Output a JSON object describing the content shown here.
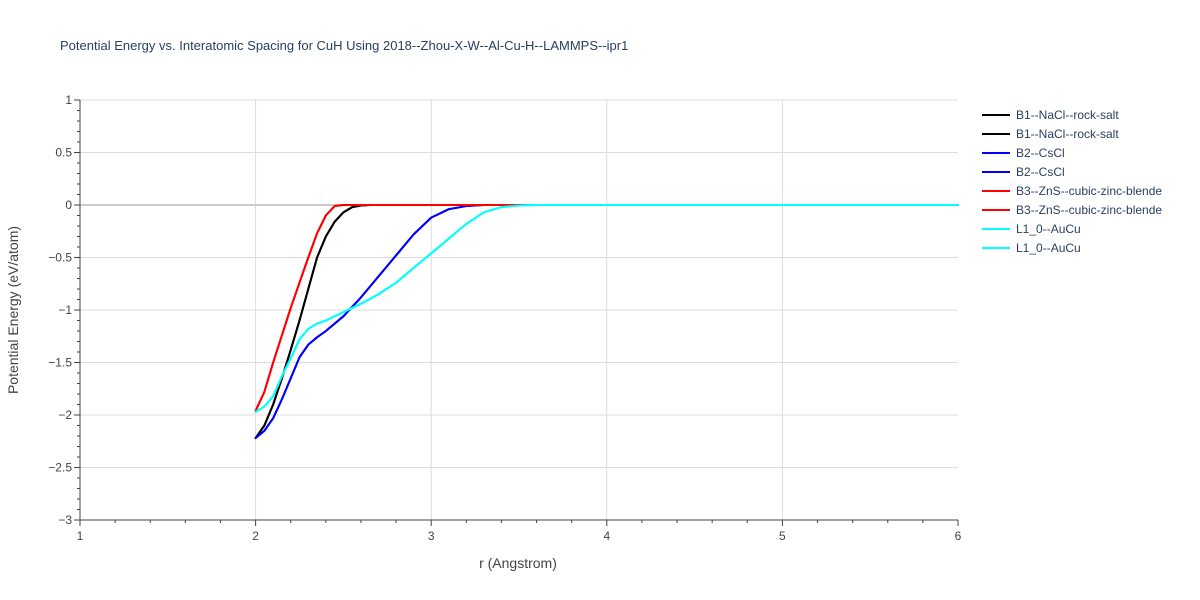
{
  "chart_data": {
    "type": "line",
    "title": "Potential Energy vs. Interatomic Spacing for CuH Using 2018--Zhou-X-W--Al-Cu-H--LAMMPS--ipr1",
    "xlabel": "r (Angstrom)",
    "ylabel": "Potential Energy (eV/atom)",
    "xlim": [
      1,
      6
    ],
    "ylim": [
      -3,
      1
    ],
    "x_ticks": [
      1,
      2,
      3,
      4,
      5,
      6
    ],
    "y_ticks": [
      1,
      0.5,
      0,
      -0.5,
      -1,
      -1.5,
      -2,
      -2.5,
      -3
    ],
    "x_tick_labels": [
      "1",
      "2",
      "3",
      "4",
      "5",
      "6"
    ],
    "y_tick_labels": [
      "1",
      "0.5",
      "0",
      "−0.5",
      "−1",
      "−1.5",
      "−2",
      "−2.5",
      "−3"
    ],
    "grid": true,
    "legend_position": "right",
    "series": [
      {
        "name": "B1--NaCl--rock-salt",
        "color": "#000000",
        "x": [
          2.0,
          2.05,
          2.1,
          2.15,
          2.2,
          2.25,
          2.3,
          2.35,
          2.4,
          2.45,
          2.5,
          2.55,
          2.6,
          2.65,
          2.7,
          3.0,
          6.0
        ],
        "y": [
          -2.22,
          -2.1,
          -1.9,
          -1.65,
          -1.38,
          -1.1,
          -0.8,
          -0.5,
          -0.3,
          -0.16,
          -0.07,
          -0.02,
          -0.005,
          0,
          0,
          0,
          0
        ]
      },
      {
        "name": "B1--NaCl--rock-salt",
        "color": "#000000",
        "x": [
          2.0,
          2.05,
          2.1,
          2.15,
          2.2,
          2.25,
          2.3,
          2.35,
          2.4,
          2.45,
          2.5,
          2.55,
          2.6,
          2.65,
          2.7,
          3.0,
          6.0
        ],
        "y": [
          -2.22,
          -2.1,
          -1.9,
          -1.65,
          -1.38,
          -1.1,
          -0.8,
          -0.5,
          -0.3,
          -0.16,
          -0.07,
          -0.02,
          -0.005,
          0,
          0,
          0,
          0
        ]
      },
      {
        "name": "B2--CsCl",
        "color": "#0000ff",
        "x": [
          2.0,
          2.05,
          2.1,
          2.15,
          2.2,
          2.25,
          2.3,
          2.35,
          2.4,
          2.5,
          2.6,
          2.7,
          2.8,
          2.9,
          3.0,
          3.1,
          3.2,
          3.3,
          3.5,
          6.0
        ],
        "y": [
          -2.22,
          -2.15,
          -2.03,
          -1.85,
          -1.65,
          -1.45,
          -1.33,
          -1.26,
          -1.2,
          -1.06,
          -0.88,
          -0.68,
          -0.48,
          -0.28,
          -0.12,
          -0.04,
          -0.01,
          0,
          0,
          0
        ]
      },
      {
        "name": "B2--CsCl",
        "color": "#0000ff",
        "x": [
          2.0,
          2.05,
          2.1,
          2.15,
          2.2,
          2.25,
          2.3,
          2.35,
          2.4,
          2.5,
          2.6,
          2.7,
          2.8,
          2.9,
          3.0,
          3.1,
          3.2,
          3.3,
          3.5,
          6.0
        ],
        "y": [
          -2.22,
          -2.15,
          -2.03,
          -1.85,
          -1.65,
          -1.45,
          -1.33,
          -1.26,
          -1.2,
          -1.06,
          -0.88,
          -0.68,
          -0.48,
          -0.28,
          -0.12,
          -0.04,
          -0.01,
          0,
          0,
          0
        ]
      },
      {
        "name": "B3--ZnS--cubic-zinc-blende",
        "color": "#ff0000",
        "x": [
          2.0,
          2.05,
          2.1,
          2.15,
          2.2,
          2.25,
          2.3,
          2.35,
          2.4,
          2.45,
          2.5,
          2.6,
          3.0,
          6.0
        ],
        "y": [
          -1.96,
          -1.78,
          -1.5,
          -1.24,
          -0.98,
          -0.74,
          -0.5,
          -0.27,
          -0.1,
          -0.01,
          0,
          0,
          0,
          0
        ]
      },
      {
        "name": "B3--ZnS--cubic-zinc-blende",
        "color": "#ff0000",
        "x": [
          2.0,
          2.05,
          2.1,
          2.15,
          2.2,
          2.25,
          2.3,
          2.35,
          2.4,
          2.45,
          2.5,
          2.6,
          3.0,
          6.0
        ],
        "y": [
          -1.96,
          -1.78,
          -1.5,
          -1.24,
          -0.98,
          -0.74,
          -0.5,
          -0.27,
          -0.1,
          -0.01,
          0,
          0,
          0,
          0
        ]
      },
      {
        "name": "L1_0--AuCu",
        "color": "#00ffff",
        "x": [
          2.0,
          2.05,
          2.1,
          2.15,
          2.2,
          2.25,
          2.3,
          2.35,
          2.4,
          2.5,
          2.6,
          2.7,
          2.8,
          2.9,
          3.0,
          3.1,
          3.2,
          3.3,
          3.4,
          3.5,
          3.6,
          4.0,
          6.0
        ],
        "y": [
          -1.97,
          -1.92,
          -1.82,
          -1.63,
          -1.46,
          -1.28,
          -1.18,
          -1.13,
          -1.1,
          -1.02,
          -0.94,
          -0.85,
          -0.74,
          -0.6,
          -0.46,
          -0.32,
          -0.18,
          -0.07,
          -0.02,
          -0.005,
          0,
          0,
          0
        ]
      },
      {
        "name": "L1_0--AuCu",
        "color": "#00ffff",
        "x": [
          2.0,
          2.05,
          2.1,
          2.15,
          2.2,
          2.25,
          2.3,
          2.35,
          2.4,
          2.5,
          2.6,
          2.7,
          2.8,
          2.9,
          3.0,
          3.1,
          3.2,
          3.3,
          3.4,
          3.5,
          3.6,
          4.0,
          6.0
        ],
        "y": [
          -1.97,
          -1.92,
          -1.82,
          -1.63,
          -1.46,
          -1.28,
          -1.18,
          -1.13,
          -1.1,
          -1.02,
          -0.94,
          -0.85,
          -0.74,
          -0.6,
          -0.46,
          -0.32,
          -0.18,
          -0.07,
          -0.02,
          -0.005,
          0,
          0,
          0
        ]
      }
    ]
  }
}
